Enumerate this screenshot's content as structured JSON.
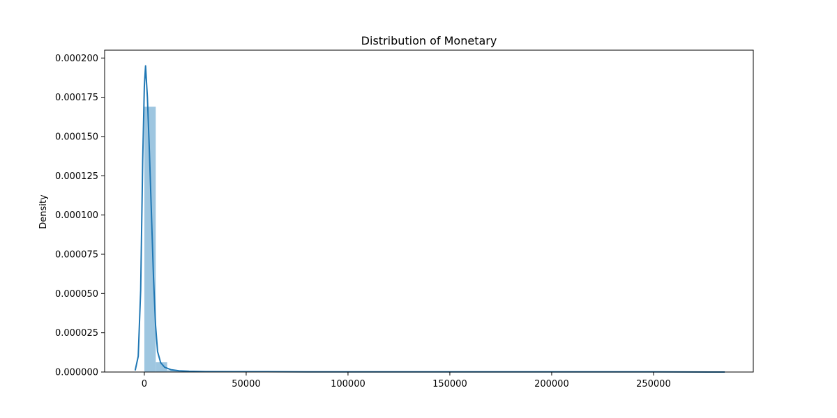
{
  "chart_data": {
    "type": "bar",
    "title": "Distribution of Monetary",
    "xlabel": "",
    "ylabel": "Density",
    "xlim": [
      -19500,
      299000
    ],
    "ylim": [
      0,
      0.000205
    ],
    "x_ticks": [
      0,
      50000,
      100000,
      150000,
      200000,
      250000
    ],
    "x_tick_labels": [
      "0",
      "50000",
      "100000",
      "150000",
      "200000",
      "250000"
    ],
    "y_ticks": [
      0,
      2.5e-05,
      5e-05,
      7.5e-05,
      0.0001,
      0.000125,
      0.00015,
      0.000175,
      0.0002
    ],
    "y_tick_labels": [
      "0.000000",
      "0.000025",
      "0.000050",
      "0.000075",
      "0.000100",
      "0.000125",
      "0.000150",
      "0.000175",
      "0.000200"
    ],
    "grid": false,
    "colors": {
      "histogram": "#9ec6e0",
      "kde": "#1f77b4"
    },
    "histogram": {
      "bins": [
        {
          "x0": 0,
          "x1": 5600,
          "density": 0.000169
        },
        {
          "x0": 5600,
          "x1": 11200,
          "density": 6.2e-06
        },
        {
          "x0": 11200,
          "x1": 16800,
          "density": 1.1e-06
        },
        {
          "x0": 16800,
          "x1": 22400,
          "density": 4e-07
        },
        {
          "x0": 22400,
          "x1": 28000,
          "density": 2e-07
        }
      ]
    },
    "kde": {
      "x": [
        -4500,
        -3000,
        -1800,
        -800,
        0,
        600,
        1500,
        2500,
        3500,
        4500,
        5500,
        6500,
        8000,
        10000,
        13000,
        17000,
        22000,
        30000,
        45000,
        60000,
        80000,
        120000,
        180000,
        250000,
        285000
      ],
      "y": [
        1e-06,
        1e-05,
        5.2e-05,
        0.000135,
        0.000182,
        0.000195,
        0.000175,
        0.00014,
        0.0001,
        6e-05,
        3e-05,
        1.3e-05,
        6e-06,
        3e-06,
        1.5e-06,
        8e-07,
        5e-07,
        3e-07,
        2e-07,
        2e-07,
        1e-07,
        1e-07,
        1e-07,
        1e-07,
        0.0
      ]
    }
  }
}
